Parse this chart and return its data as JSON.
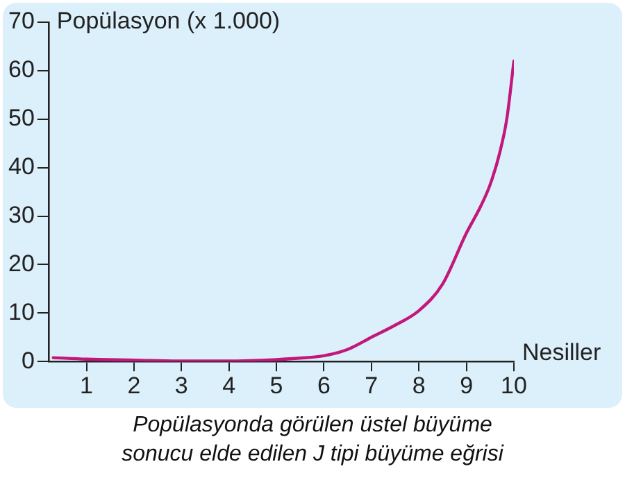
{
  "chart_data": {
    "type": "line",
    "ylabel": "Popülasyon (x 1.000)",
    "xlabel": "Nesiller",
    "annotations": [
      "Popülasyonda görülen üstel büyüme\nsonucu elde edilen J tipi büyüme eğrisi"
    ],
    "x": [
      0.3,
      1,
      2,
      3,
      4,
      5,
      5.5,
      6,
      6.5,
      7,
      7.5,
      8,
      8.5,
      9,
      9.3,
      9.5,
      9.7,
      9.85,
      10
    ],
    "series": [
      {
        "color": "#c2187c",
        "values": [
          0.8,
          0.5,
          0.3,
          0.1,
          0.1,
          0.4,
          0.7,
          1.2,
          2.5,
          5,
          7.5,
          10.5,
          16,
          26.5,
          32,
          36.5,
          43,
          50,
          62
        ]
      }
    ],
    "xlim": [
      0.2,
      10
    ],
    "xticks": [
      1,
      2,
      3,
      4,
      5,
      6,
      7,
      8,
      9,
      10
    ],
    "ylim": [
      0,
      70
    ],
    "yticks": [
      0,
      10,
      20,
      30,
      40,
      50,
      60,
      70
    ],
    "grid": false,
    "legend": false,
    "marker": "none",
    "line_style": "solid"
  }
}
